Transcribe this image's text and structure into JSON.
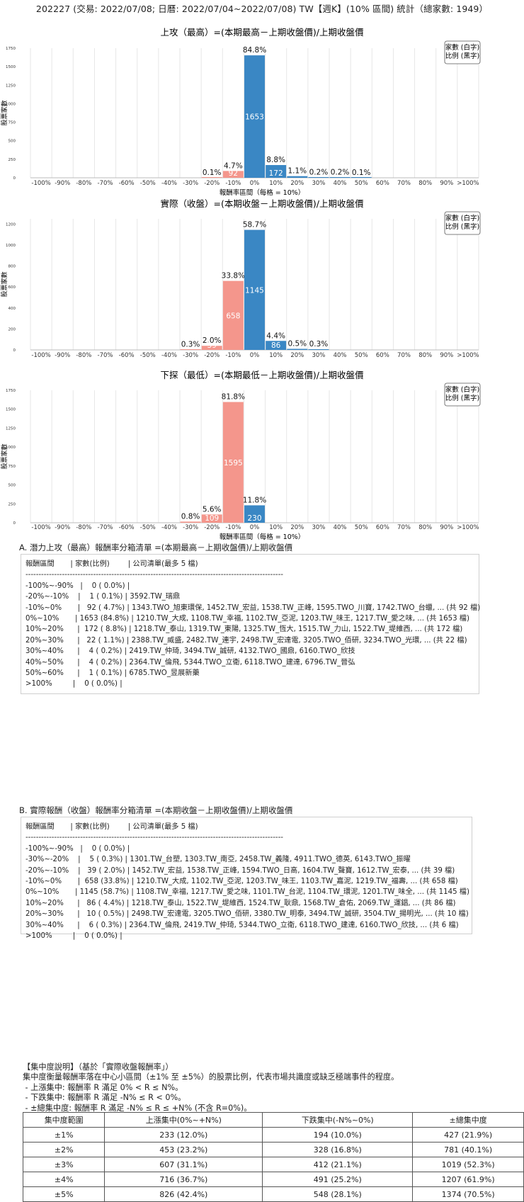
{
  "main_title": "202227 (交易: 2022/07/08; 日曆: 2022/07/04~2022/07/08) TW【週K】(10% 區間) 統計（總家數: 1949）",
  "colors": {
    "positive": "#3a87c4",
    "negative": "#f4968c",
    "grid": "#e6e6e6"
  },
  "chart_data": [
    {
      "type": "bar",
      "title": "上攻（最高）=(本期最高－上期收盤價)/上期收盤價",
      "xlabel": "報酬率區間（每格 = 10%）",
      "ylabel": "股票家數",
      "legend": [
        "家數 (白字)",
        "比例 (黑字)"
      ],
      "legend_position": "top-right",
      "ylim": [
        0,
        1750
      ],
      "yticks": [
        0,
        250,
        500,
        750,
        1000,
        1250,
        1500,
        1750
      ],
      "categories": [
        "-100%",
        "-90%",
        "-80%",
        "-70%",
        "-60%",
        "-50%",
        "-40%",
        "-30%",
        "-20%",
        "-10%",
        "0%",
        "10%",
        "20%",
        "30%",
        "40%",
        "50%",
        "60%",
        "70%",
        "80%",
        "90%",
        ">100%"
      ],
      "values": [
        0,
        0,
        0,
        0,
        0,
        0,
        0,
        0,
        1,
        92,
        1653,
        172,
        22,
        4,
        4,
        1,
        0,
        0,
        0,
        0,
        0
      ],
      "pct_labels": [
        "",
        "",
        "",
        "",
        "",
        "",
        "",
        "",
        "0.1%",
        "4.7%",
        "84.8%",
        "8.8%",
        "1.1%",
        "0.2%",
        "0.2%",
        "0.1%",
        "",
        "",
        "",
        "",
        ""
      ],
      "count_labels": [
        "",
        "",
        "",
        "",
        "",
        "",
        "",
        "",
        "",
        "92",
        "1653",
        "172",
        "",
        "",
        "",
        "",
        "",
        "",
        "",
        "",
        ""
      ]
    },
    {
      "type": "bar",
      "title": "實際（收盤）=(本期收盤－上期收盤價)/上期收盤價",
      "xlabel": "",
      "ylabel": "股票家數",
      "legend": [
        "家數 (白字)",
        "比例 (黑字)"
      ],
      "legend_position": "top-right",
      "ylim": [
        0,
        1250
      ],
      "yticks": [
        0,
        200,
        400,
        600,
        800,
        1000,
        1200
      ],
      "categories": [
        "-100%",
        "-90%",
        "-80%",
        "-70%",
        "-60%",
        "-50%",
        "-40%",
        "-30%",
        "-20%",
        "-10%",
        "0%",
        "10%",
        "20%",
        "30%",
        "40%",
        "50%",
        "60%",
        "70%",
        "80%",
        "90%",
        ">100%"
      ],
      "values": [
        0,
        0,
        0,
        0,
        0,
        0,
        0,
        5,
        39,
        658,
        1145,
        86,
        10,
        6,
        0,
        0,
        0,
        0,
        0,
        0,
        0
      ],
      "pct_labels": [
        "",
        "",
        "",
        "",
        "",
        "",
        "",
        "0.3%",
        "2.0%",
        "33.8%",
        "58.7%",
        "4.4%",
        "0.5%",
        "0.3%",
        "",
        "",
        "",
        "",
        "",
        "",
        ""
      ],
      "count_labels": [
        "",
        "",
        "",
        "",
        "",
        "",
        "",
        "",
        "39",
        "658",
        "1145",
        "86",
        "",
        "",
        "",
        "",
        "",
        "",
        "",
        "",
        ""
      ]
    },
    {
      "type": "bar",
      "title": "下探（最低）=(本期最低－上期收盤價)/上期收盤價",
      "xlabel": "報酬率區間（每格 = 10%）",
      "ylabel": "股票家數",
      "legend": [
        "家數 (白字)",
        "比例 (黑字)"
      ],
      "legend_position": "top-right",
      "ylim": [
        0,
        1750
      ],
      "yticks": [
        0,
        250,
        500,
        750,
        1000,
        1250,
        1500,
        1750
      ],
      "categories": [
        "-100%",
        "-90%",
        "-80%",
        "-70%",
        "-60%",
        "-50%",
        "-40%",
        "-30%",
        "-20%",
        "-10%",
        "0%",
        "10%",
        "20%",
        "30%",
        "40%",
        "50%",
        "60%",
        "70%",
        "80%",
        "90%",
        ">100%"
      ],
      "values": [
        0,
        0,
        0,
        0,
        0,
        0,
        0,
        15,
        109,
        1595,
        230,
        0,
        0,
        0,
        0,
        0,
        0,
        0,
        0,
        0,
        0
      ],
      "pct_labels": [
        "",
        "",
        "",
        "",
        "",
        "",
        "",
        "0.8%",
        "5.6%",
        "81.8%",
        "11.8%",
        "",
        "",
        "",
        "",
        "",
        "",
        "",
        "",
        "",
        ""
      ],
      "count_labels": [
        "",
        "",
        "",
        "",
        "",
        "",
        "",
        "",
        "109",
        "1595",
        "230",
        "",
        "",
        "",
        "",
        "",
        "",
        "",
        "",
        "",
        ""
      ]
    }
  ],
  "section_a": {
    "title": "A. 潛力上攻（最高）報酬率分箱清單 =(本期最高－上期收盤價)/上期收盤價",
    "lines": [
      "報酬區間       | 家數(比例)        | 公司清單(最多 5 檔)",
      "---------------------------------------------------------------------------------------------------",
      "-100%~-90%   |    0 ( 0.0%) |",
      "-20%~-10%    |    1 ( 0.1%) | 3592.TW_瑞鼎",
      "-10%~0%       |   92 ( 4.7%) | 1343.TWO_旭東環保, 1452.TW_宏益, 1538.TW_正峰, 1595.TWO_川寶, 1742.TWO_台蠟, ... (共 92 檔)",
      "0%~10%       | 1653 (84.8%) | 1210.TW_大成, 1108.TW_幸福, 1102.TW_亞泥, 1203.TW_味王, 1217.TW_愛之味, ... (共 1653 檔)",
      "10%~20%      |  172 ( 8.8%) | 1218.TW_泰山, 1319.TW_東陽, 1325.TW_恆大, 1515.TW_力山, 1522.TW_堤維西, ... (共 172 檔)",
      "20%~30%      |   22 ( 1.1%) | 2388.TW_威盛, 2482.TW_連宇, 2498.TW_宏達電, 3205.TWO_佰研, 3234.TWO_光環, ... (共 22 檔)",
      "30%~40%      |    4 ( 0.2%) | 2419.TW_仲琦, 3494.TW_誠研, 4132.TWO_國鼎, 6160.TWO_欣技",
      "40%~50%      |    4 ( 0.2%) | 2364.TW_倫飛, 5344.TWO_立衛, 6118.TWO_建達, 6796.TW_晉弘",
      "50%~60%      |    1 ( 0.1%) | 6785.TWO_昱展新藥",
      ">100%         |    0 ( 0.0%) |"
    ]
  },
  "section_b": {
    "title": "B. 實際報酬（收盤）報酬率分箱清單 =(本期收盤－上期收盤價)/上期收盤價",
    "lines": [
      "報酬區間       | 家數(比例)        | 公司清單(最多 5 檔)",
      "---------------------------------------------------------------------------------------------------",
      "-100%~-90%   |    0 ( 0.0%) |",
      "-30%~-20%    |    5 ( 0.3%) | 1301.TW_台塑, 1303.TW_南亞, 2458.TW_義隆, 4911.TWO_德英, 6143.TWO_振曜",
      "-20%~-10%    |   39 ( 2.0%) | 1452.TW_宏益, 1538.TW_正峰, 1594.TWO_日高, 1604.TW_聲寶, 1612.TW_宏泰, ... (共 39 檔)",
      "-10%~0%       |  658 (33.8%) | 1210.TW_大成, 1102.TW_亞泥, 1203.TW_味王, 1103.TW_嘉泥, 1219.TW_福壽, ... (共 658 檔)",
      "0%~10%       | 1145 (58.7%) | 1108.TW_幸福, 1217.TW_愛之味, 1101.TW_台泥, 1104.TW_環泥, 1201.TW_味全, ... (共 1145 檔)",
      "10%~20%      |   86 ( 4.4%) | 1218.TW_泰山, 1522.TW_堤維西, 1524.TW_耿鼎, 1568.TW_倉佑, 2069.TW_運錩, ... (共 86 檔)",
      "20%~30%      |   10 ( 0.5%) | 2498.TW_宏達電, 3205.TWO_佰研, 3380.TW_明泰, 3494.TW_誠研, 3504.TW_揚明光, ... (共 10 檔)",
      "30%~40%      |    6 ( 0.3%) | 2364.TW_倫飛, 2419.TW_仲琦, 5344.TWO_立衛, 6118.TWO_建達, 6160.TWO_欣技, ... (共 6 檔)",
      ">100%         |    0 ( 0.0%) |"
    ]
  },
  "concentration": {
    "lines": [
      "【集中度說明】（基於「實際收盤報酬率」）",
      "集中度衡量報酬率落在中心小區間（±1% 至 ±5%）的股票比例，代表市場共識度或缺乏極端事件的程度。",
      " - 上漲集中: 報酬率 R 滿足 0% < R ≤ N%。",
      " - 下跌集中: 報酬率 R 滿足 -N% ≤ R < 0%。",
      " - ±總集中度: 報酬率 R 滿足 -N% ≤ R ≤ +N% (不含 R=0%)。"
    ],
    "headers": [
      "集中度範圍",
      "上漲集中(0%~+N%)",
      "下跌集中(-N%~0%)",
      "±總集中度"
    ],
    "rows": [
      [
        "±1%",
        "233 (12.0%)",
        "194 (10.0%)",
        "427 (21.9%)"
      ],
      [
        "±2%",
        "453 (23.2%)",
        "328 (16.8%)",
        "781 (40.1%)"
      ],
      [
        "±3%",
        "607 (31.1%)",
        "412 (21.1%)",
        "1019 (52.3%)"
      ],
      [
        "±4%",
        "716 (36.7%)",
        "491 (25.2%)",
        "1207 (61.9%)"
      ],
      [
        "±5%",
        "826 (42.4%)",
        "548 (28.1%)",
        "1374 (70.5%)"
      ]
    ]
  }
}
